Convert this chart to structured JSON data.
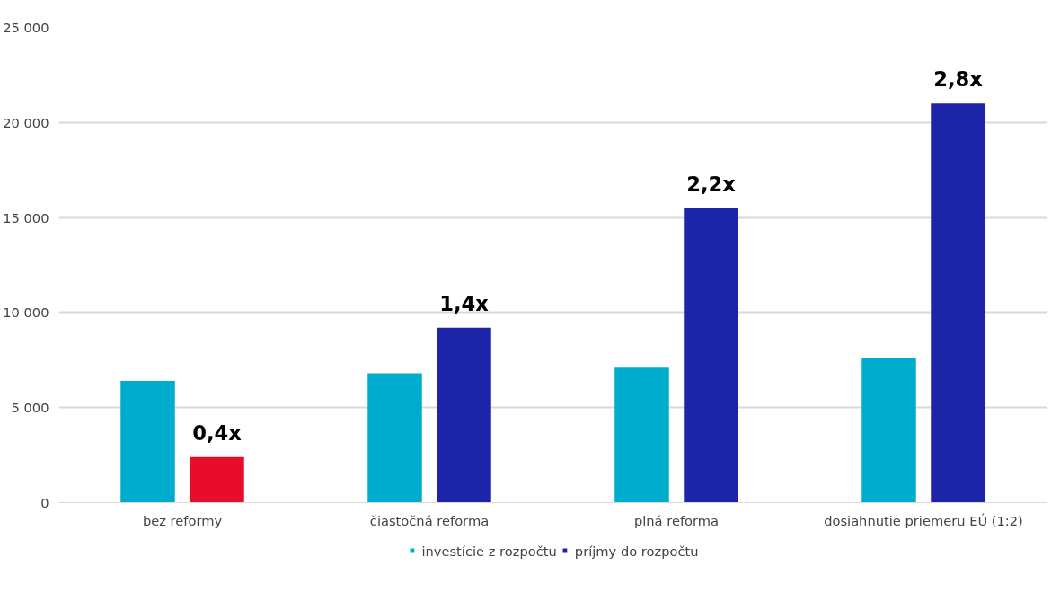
{
  "chart_data": {
    "type": "bar",
    "categories": [
      "bez reformy",
      "čiastočná reforma",
      "plná reforma",
      "dosiahnutie priemeru EÚ (1:2)"
    ],
    "series": [
      {
        "name": "investície z rozpočtu",
        "color": "#00acce",
        "values": [
          6400,
          6800,
          7100,
          7600
        ]
      },
      {
        "name": "príjmy do rozpočtu",
        "color": "#1c25a8",
        "colors": [
          "#e80c2a",
          "#1c25a8",
          "#1c25a8",
          "#1c25a8"
        ],
        "values": [
          2400,
          9200,
          15500,
          21000
        ]
      }
    ],
    "annotations": [
      "0,4x",
      "1,4x",
      "2,2x",
      "2,8x"
    ],
    "ylim": [
      0,
      25000
    ],
    "yticks": [
      {
        "value": 0,
        "label": "0"
      },
      {
        "value": 5000,
        "label": "5 000"
      },
      {
        "value": 10000,
        "label": "10 000"
      },
      {
        "value": 15000,
        "label": "15 000"
      },
      {
        "value": 20000,
        "label": "20 000"
      },
      {
        "value": 25000,
        "label": "25 000"
      }
    ],
    "grid": "y",
    "legend": "bottom"
  }
}
